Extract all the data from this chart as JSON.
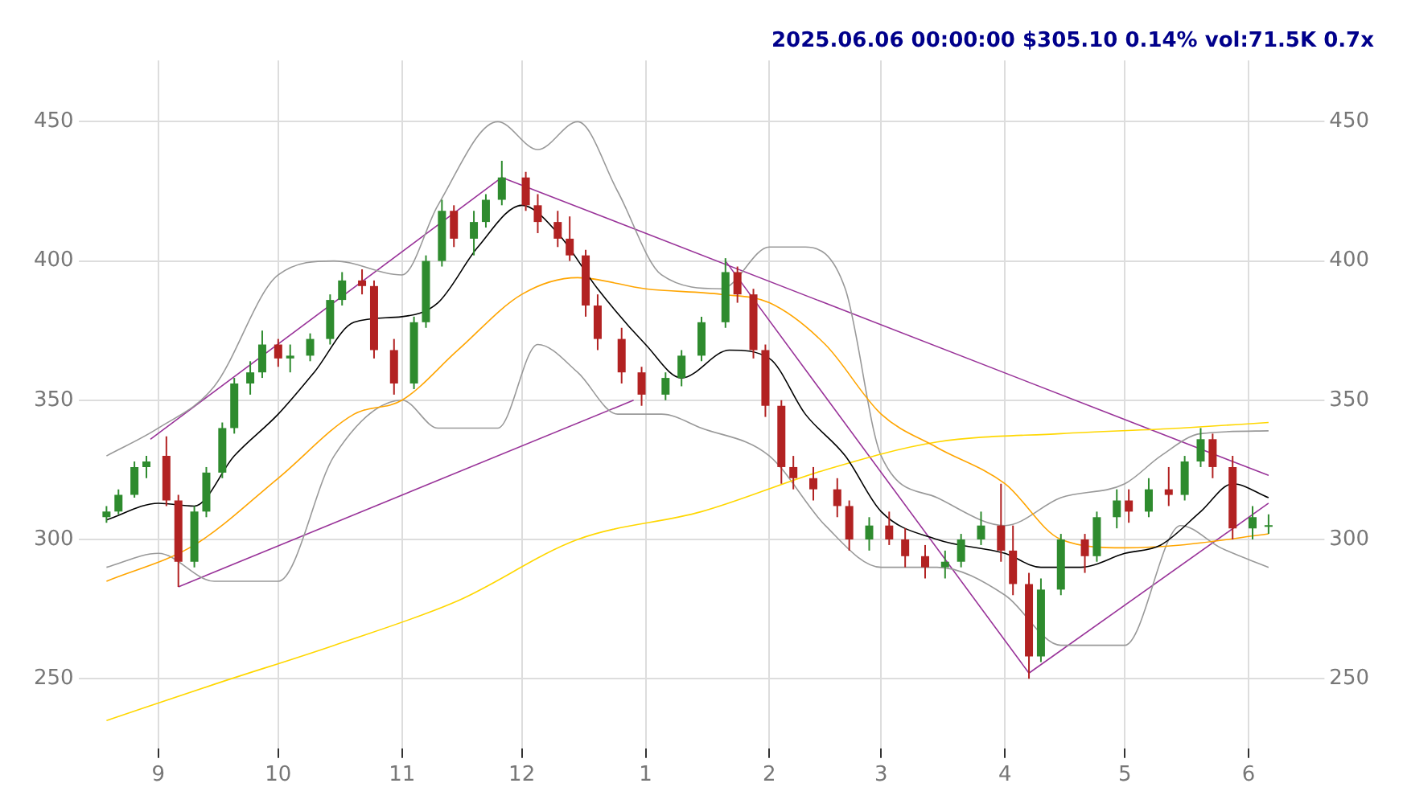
{
  "chart_data": {
    "type": "candlestick",
    "title": "2025.06.06 00:00:00 $305.10 0.14% vol:71.5K 0.7x",
    "x": [
      "2024-08-19",
      "2024-08-22",
      "2024-08-26",
      "2024-08-29",
      "2024-09-03",
      "2024-09-06",
      "2024-09-10",
      "2024-09-13",
      "2024-09-17",
      "2024-09-20",
      "2024-09-24",
      "2024-09-27",
      "2024-10-01",
      "2024-10-04",
      "2024-10-09",
      "2024-10-14",
      "2024-10-17",
      "2024-10-22",
      "2024-10-25",
      "2024-10-30",
      "2024-11-04",
      "2024-11-07",
      "2024-11-11",
      "2024-11-14",
      "2024-11-19",
      "2024-11-22",
      "2024-11-26",
      "2024-12-02",
      "2024-12-05",
      "2024-12-10",
      "2024-12-13",
      "2024-12-17",
      "2024-12-20",
      "2024-12-26",
      "2024-12-31",
      "2025-01-06",
      "2025-01-10",
      "2025-01-15",
      "2025-01-21",
      "2025-01-24",
      "2025-01-28",
      "2025-01-31",
      "2025-02-04",
      "2025-02-07",
      "2025-02-12",
      "2025-02-18",
      "2025-02-21",
      "2025-02-26",
      "2025-03-03",
      "2025-03-07",
      "2025-03-12",
      "2025-03-17",
      "2025-03-21",
      "2025-03-26",
      "2025-03-31",
      "2025-04-03",
      "2025-04-07",
      "2025-04-10",
      "2025-04-15",
      "2025-04-21",
      "2025-04-24",
      "2025-04-29",
      "2025-05-02",
      "2025-05-07",
      "2025-05-12",
      "2025-05-16",
      "2025-05-20",
      "2025-05-23",
      "2025-05-28",
      "2025-06-02",
      "2025-06-06"
    ],
    "ohlc": [
      [
        308,
        312,
        306,
        310
      ],
      [
        310,
        318,
        309,
        316
      ],
      [
        316,
        328,
        315,
        326
      ],
      [
        326,
        330,
        322,
        328
      ],
      [
        330,
        337,
        312,
        314
      ],
      [
        314,
        316,
        283,
        292
      ],
      [
        292,
        312,
        290,
        310
      ],
      [
        310,
        326,
        308,
        324
      ],
      [
        324,
        342,
        322,
        340
      ],
      [
        340,
        358,
        338,
        356
      ],
      [
        356,
        364,
        352,
        360
      ],
      [
        360,
        375,
        358,
        370
      ],
      [
        370,
        372,
        362,
        365
      ],
      [
        365,
        370,
        360,
        366
      ],
      [
        366,
        374,
        364,
        372
      ],
      [
        372,
        388,
        370,
        386
      ],
      [
        386,
        396,
        384,
        393
      ],
      [
        393,
        397,
        388,
        391
      ],
      [
        391,
        393,
        365,
        368
      ],
      [
        368,
        372,
        352,
        356
      ],
      [
        356,
        380,
        354,
        378
      ],
      [
        378,
        402,
        376,
        400
      ],
      [
        400,
        422,
        398,
        418
      ],
      [
        418,
        420,
        405,
        408
      ],
      [
        408,
        418,
        402,
        414
      ],
      [
        414,
        424,
        412,
        422
      ],
      [
        422,
        436,
        420,
        430
      ],
      [
        430,
        432,
        418,
        420
      ],
      [
        420,
        424,
        410,
        414
      ],
      [
        414,
        418,
        405,
        408
      ],
      [
        408,
        416,
        400,
        402
      ],
      [
        402,
        404,
        380,
        384
      ],
      [
        384,
        388,
        368,
        372
      ],
      [
        372,
        376,
        356,
        360
      ],
      [
        360,
        362,
        348,
        352
      ],
      [
        352,
        360,
        350,
        358
      ],
      [
        358,
        368,
        355,
        366
      ],
      [
        366,
        380,
        364,
        378
      ],
      [
        378,
        401,
        376,
        396
      ],
      [
        396,
        398,
        385,
        388
      ],
      [
        388,
        390,
        365,
        368
      ],
      [
        368,
        370,
        344,
        348
      ],
      [
        348,
        350,
        320,
        326
      ],
      [
        326,
        330,
        318,
        322
      ],
      [
        322,
        326,
        314,
        318
      ],
      [
        318,
        322,
        308,
        312
      ],
      [
        312,
        314,
        296,
        300
      ],
      [
        300,
        308,
        296,
        305
      ],
      [
        305,
        310,
        298,
        300
      ],
      [
        300,
        304,
        290,
        294
      ],
      [
        294,
        298,
        286,
        290
      ],
      [
        290,
        296,
        286,
        292
      ],
      [
        292,
        302,
        290,
        300
      ],
      [
        300,
        310,
        298,
        305
      ],
      [
        305,
        320,
        292,
        296
      ],
      [
        296,
        305,
        280,
        284
      ],
      [
        284,
        288,
        250,
        258
      ],
      [
        258,
        286,
        256,
        282
      ],
      [
        282,
        302,
        280,
        300
      ],
      [
        300,
        302,
        288,
        294
      ],
      [
        294,
        310,
        292,
        308
      ],
      [
        308,
        318,
        304,
        314
      ],
      [
        314,
        318,
        306,
        310
      ],
      [
        310,
        322,
        308,
        318
      ],
      [
        318,
        326,
        312,
        316
      ],
      [
        316,
        330,
        314,
        328
      ],
      [
        328,
        340,
        326,
        336
      ],
      [
        336,
        338,
        322,
        326
      ],
      [
        326,
        330,
        300,
        304
      ],
      [
        304,
        312,
        300,
        308
      ],
      [
        305,
        309,
        302,
        305.1
      ]
    ],
    "series": [
      {
        "type": "line",
        "color": "#000000",
        "x": [
          "2024-08-19",
          "2024-09-01",
          "2024-09-10",
          "2024-09-20",
          "2024-10-01",
          "2024-10-10",
          "2024-10-20",
          "2024-11-01",
          "2024-11-10",
          "2024-11-20",
          "2024-12-01",
          "2024-12-10",
          "2024-12-20",
          "2025-01-01",
          "2025-01-10",
          "2025-01-22",
          "2025-02-01",
          "2025-02-10",
          "2025-02-20",
          "2025-03-01",
          "2025-03-15",
          "2025-04-01",
          "2025-04-10",
          "2025-04-20",
          "2025-05-01",
          "2025-05-10",
          "2025-05-20",
          "2025-05-28",
          "2025-06-06"
        ],
        "values": [
          307,
          313,
          312,
          330,
          345,
          360,
          378,
          380,
          385,
          405,
          420,
          410,
          390,
          370,
          358,
          368,
          365,
          345,
          330,
          310,
          300,
          295,
          290,
          290,
          295,
          298,
          310,
          320,
          315
        ]
      },
      {
        "type": "line",
        "color": "#ffa500",
        "x": [
          "2024-08-19",
          "2024-09-10",
          "2024-10-01",
          "2024-10-20",
          "2024-11-01",
          "2024-11-15",
          "2024-12-01",
          "2024-12-15",
          "2025-01-01",
          "2025-01-20",
          "2025-02-01",
          "2025-02-15",
          "2025-03-01",
          "2025-03-15",
          "2025-04-01",
          "2025-04-15",
          "2025-05-01",
          "2025-05-15",
          "2025-06-06"
        ],
        "values": [
          285,
          298,
          322,
          345,
          350,
          368,
          388,
          394,
          390,
          388,
          385,
          370,
          345,
          333,
          320,
          300,
          297,
          298,
          302
        ]
      },
      {
        "type": "line",
        "color": "#ffd700",
        "x": [
          "2024-08-19",
          "2024-09-15",
          "2024-10-15",
          "2024-11-15",
          "2024-12-15",
          "2025-01-15",
          "2025-02-15",
          "2025-03-15",
          "2025-04-15",
          "2025-05-15",
          "2025-06-06"
        ],
        "values": [
          235,
          248,
          262,
          278,
          300,
          310,
          325,
          335,
          338,
          340,
          342
        ]
      },
      {
        "type": "line",
        "color": "#999999",
        "x": [
          "2024-08-19",
          "2024-09-01",
          "2024-09-15",
          "2024-10-01",
          "2024-10-15",
          "2024-11-01",
          "2024-11-10",
          "2024-11-25",
          "2024-12-05",
          "2024-12-15",
          "2024-12-25",
          "2025-01-05",
          "2025-01-20",
          "2025-02-01",
          "2025-02-10",
          "2025-02-20",
          "2025-03-01",
          "2025-03-15",
          "2025-04-01",
          "2025-04-15",
          "2025-05-01",
          "2025-05-10",
          "2025-05-20",
          "2025-06-06"
        ],
        "values": [
          330,
          340,
          355,
          395,
          400,
          395,
          420,
          450,
          440,
          450,
          425,
          395,
          390,
          405,
          405,
          390,
          330,
          315,
          305,
          315,
          320,
          330,
          338,
          339
        ]
      },
      {
        "type": "line",
        "color": "#999999",
        "x": [
          "2024-08-19",
          "2024-09-01",
          "2024-09-15",
          "2024-10-01",
          "2024-10-15",
          "2024-11-01",
          "2024-11-10",
          "2024-11-25",
          "2024-12-05",
          "2024-12-15",
          "2024-12-25",
          "2025-01-05",
          "2025-01-15",
          "2025-02-01",
          "2025-02-15",
          "2025-03-01",
          "2025-03-15",
          "2025-04-01",
          "2025-04-15",
          "2025-05-01",
          "2025-05-15",
          "2025-05-25",
          "2025-06-06"
        ],
        "values": [
          290,
          295,
          285,
          285,
          330,
          350,
          340,
          340,
          370,
          360,
          345,
          345,
          340,
          330,
          305,
          290,
          290,
          280,
          262,
          262,
          305,
          297,
          290
        ]
      },
      {
        "type": "line",
        "color": "#993399",
        "x": [
          "2024-08-30",
          "2024-11-26"
        ],
        "values": [
          336,
          430
        ]
      },
      {
        "type": "line",
        "color": "#993399",
        "x": [
          "2024-11-26",
          "2025-06-06"
        ],
        "values": [
          430,
          323
        ]
      },
      {
        "type": "line",
        "color": "#993399",
        "x": [
          "2024-09-06",
          "2024-12-29"
        ],
        "values": [
          283,
          350
        ]
      },
      {
        "type": "line",
        "color": "#993399",
        "x": [
          "2025-01-21",
          "2025-04-07"
        ],
        "values": [
          400,
          252
        ]
      },
      {
        "type": "line",
        "color": "#993399",
        "x": [
          "2025-04-07",
          "2025-06-06"
        ],
        "values": [
          252,
          313
        ]
      }
    ],
    "xlim": [
      "2024-08-12",
      "2025-06-20"
    ],
    "xticks": [
      {
        "value": "2024-09-01",
        "label": "9"
      },
      {
        "value": "2024-10-01",
        "label": "10"
      },
      {
        "value": "2024-11-01",
        "label": "11"
      },
      {
        "value": "2024-12-01",
        "label": "12"
      },
      {
        "value": "2025-01-01",
        "label": "1"
      },
      {
        "value": "2025-02-01",
        "label": "2"
      },
      {
        "value": "2025-03-01",
        "label": "3"
      },
      {
        "value": "2025-04-01",
        "label": "4"
      },
      {
        "value": "2025-05-01",
        "label": "5"
      },
      {
        "value": "2025-06-01",
        "label": "6"
      }
    ],
    "ylim": [
      225,
      472
    ],
    "yticks": [
      250,
      300,
      350,
      400,
      450
    ],
    "y2lim": [
      225,
      472
    ],
    "y2ticks": [
      250,
      300,
      350,
      400,
      450
    ],
    "grid": true,
    "marker": "none",
    "line_style": "solid"
  }
}
